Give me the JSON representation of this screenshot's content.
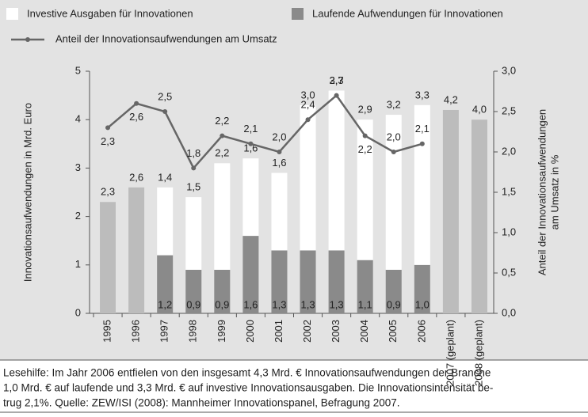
{
  "chart_data": {
    "type": "bar",
    "categories": [
      "1995",
      "1996",
      "1997",
      "1998",
      "1999",
      "2000",
      "2001",
      "2002",
      "2003",
      "2004",
      "2005",
      "2006",
      "2007 (geplant)",
      "2008 (geplant)"
    ],
    "series": [
      {
        "name": "Investive Ausgaben für Innovationen",
        "color": "#ffffff",
        "values": [
          null,
          null,
          1.4,
          1.5,
          2.2,
          1.6,
          1.6,
          3.0,
          3.3,
          2.9,
          3.2,
          3.3,
          null,
          null
        ],
        "value_labels": [
          null,
          null,
          "1,4",
          "1,5",
          "2,2",
          "1,6",
          "1,6",
          "3,0",
          "3,3",
          "2,9",
          "3,2",
          "3,3",
          null,
          null
        ]
      },
      {
        "name": "Laufende Aufwendungen für Innovationen",
        "color": "#8a8a8a",
        "values": [
          null,
          null,
          1.2,
          0.9,
          0.9,
          1.6,
          1.3,
          1.3,
          1.3,
          1.1,
          0.9,
          1.0,
          null,
          null
        ],
        "value_labels": [
          null,
          null,
          "1,2",
          "0,9",
          "0,9",
          "1,6",
          "1,3",
          "1,3",
          "1,3",
          "1,1",
          "0,9",
          "1,0",
          null,
          null
        ]
      },
      {
        "color": "#bcbcbc",
        "values": [
          2.3,
          2.6,
          null,
          null,
          null,
          null,
          null,
          null,
          null,
          null,
          null,
          null,
          4.2,
          4.0
        ],
        "value_labels": [
          "2,3",
          "2,6",
          null,
          null,
          null,
          null,
          null,
          null,
          null,
          null,
          null,
          null,
          "4,2",
          "4,0"
        ]
      },
      {
        "name": "Anteil der Innovationsaufwendungen am Umsatz",
        "type": "line",
        "axis": "y2",
        "color": "#666666",
        "values": [
          2.3,
          2.6,
          2.5,
          1.8,
          2.2,
          2.1,
          2.0,
          2.4,
          2.7,
          2.2,
          2.0,
          2.1,
          null,
          null
        ],
        "value_labels": [
          "2,3",
          "2,6",
          "2,5",
          "1,8",
          "2,2",
          "2,1",
          "2,0",
          "2,4",
          "2,7",
          "2,2",
          "2,0",
          "2,1",
          null,
          null
        ]
      }
    ],
    "y_label": "Innovationsaufwendungen in Mrd. Euro",
    "y2_label": [
      "Anteil der Innovationsaufwendungen",
      "am Umsatz in %"
    ],
    "ylim": [
      0,
      5
    ],
    "yticks": [
      0,
      1,
      2,
      3,
      4,
      5
    ],
    "y2lim": [
      0,
      3
    ],
    "y2ticks": [
      {
        "value": 0,
        "label": "0,0"
      },
      {
        "value": 0.5,
        "label": "0,5"
      },
      {
        "value": 1,
        "label": "1,0"
      },
      {
        "value": 1.5,
        "label": "1,5"
      },
      {
        "value": 2,
        "label": "2,0"
      },
      {
        "value": 2.5,
        "label": "2,5"
      },
      {
        "value": 3,
        "label": "3,0"
      }
    ],
    "note": [
      "Lesehilfe: Im Jahr 2006 entfielen von den insgesamt 4,3 Mrd. € Innovationsaufwendungen der Branche",
      "1,0 Mrd. € auf laufende und 3,3 Mrd. € auf investive Innovationsausgaben. Die Innovationsintensität be-",
      "trug 2,1%. Quelle: ZEW/ISI (2008): Mannheimer Innovationspanel, Befragung 2007."
    ]
  }
}
